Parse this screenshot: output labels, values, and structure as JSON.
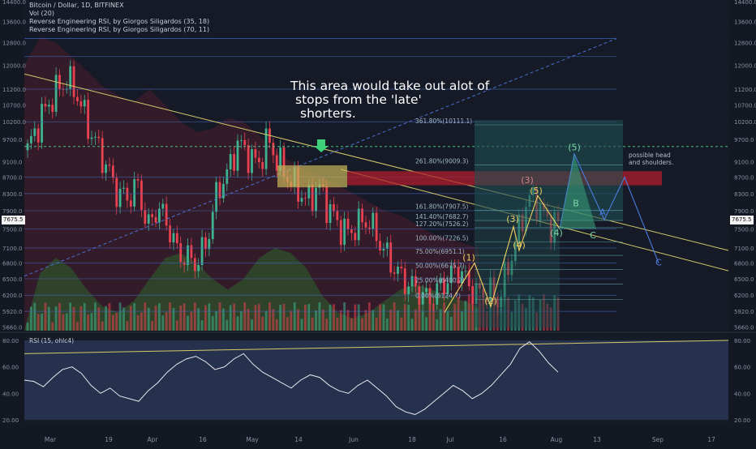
{
  "header": {
    "symbol_line": "Bitcoin / Dollar, 1D, BITFINEX",
    "indicator_1": "Vol (20)",
    "indicator_2": "Reverse Engineering RSI, by Giorgos Siligardos (35, 18)",
    "indicator_3": "Reverse Engineering RSI, by Giorgos Siligardos (70, 11)"
  },
  "annotations": {
    "main_note_1": "This area would take out alot of",
    "main_note_2": "stops from the 'late'",
    "main_note_3": "shorters.",
    "head_shoulders_1": "possible head",
    "head_shoulders_2": "and shoulders."
  },
  "price_tags": {
    "current_left": "7675.5",
    "current_right": "7675.5"
  },
  "colors": {
    "up": "#3fb28f",
    "down": "#e8414f",
    "wave": "#f0d060",
    "target": "#7bd9a8"
  },
  "chart_data": [
    {
      "type": "candlestick",
      "title": "Bitcoin / Dollar, 1D, BITFINEX",
      "y_scale": "log",
      "ylim": [
        5600,
        14400
      ],
      "y_ticks_left": [
        "14400.0",
        "13600.0",
        "12800.0",
        "12000.0",
        "11200.0",
        "10700.0",
        "10200.0",
        "9700.0",
        "9100.0",
        "8700.0",
        "8300.0",
        "7900.0",
        "7500.0",
        "7100.0",
        "6800.0",
        "6500.0",
        "6200.0",
        "5920.0",
        "5660.0"
      ],
      "y_ticks_right": [
        "14400.0",
        "13600.0",
        "12800.0",
        "12000.0",
        "11200.0",
        "10700.0",
        "10200.0",
        "9700.0",
        "9100.0",
        "8700.0",
        "8300.0",
        "7900.0",
        "7500.0",
        "7100.0",
        "6800.0",
        "6500.0",
        "6200.0",
        "5920.0",
        "5660.0"
      ],
      "x_ticks": [
        "Mar",
        "19",
        "Apr",
        "16",
        "May",
        "14",
        "Jun",
        "18",
        "Jul",
        "16",
        "Aug",
        "13",
        "Sep",
        "17"
      ],
      "close_path": [
        9400,
        10100,
        10700,
        11200,
        11500,
        11000,
        10100,
        9500,
        8900,
        8300,
        8200,
        8500,
        7500,
        8000,
        7600,
        7000,
        6900,
        6800,
        7300,
        8400,
        8800,
        9600,
        9300,
        9000,
        9700,
        9100,
        8700,
        8400,
        8100,
        8500,
        8000,
        7600,
        7400,
        7600,
        7700,
        7300,
        6900,
        6600,
        6400,
        6300,
        6100,
        6300,
        6500,
        6700,
        6400,
        6200,
        6300,
        6100,
        6700,
        7400,
        8200,
        8100,
        7600,
        7675.5
      ],
      "fib_levels": [
        {
          "label": "361.80%(10111.1)",
          "price": 10111.1
        },
        {
          "label": "261.80%(9009.3)",
          "price": 9009.3
        },
        {
          "label": "161.80%(7907.5)",
          "price": 7907.5
        },
        {
          "label": "141.40%(7682.7)",
          "price": 7682.7
        },
        {
          "label": "127.20%(7526.2)",
          "price": 7526.2
        },
        {
          "label": "100.00%(7226.5)",
          "price": 7226.5
        },
        {
          "label": "75.00%(6951.1)",
          "price": 6951.1
        },
        {
          "label": "50.00%(6675.7)",
          "price": 6675.7
        },
        {
          "label": "25.00%(6400.2)",
          "price": 6400.2
        },
        {
          "label": "0.00%(6124.7)",
          "price": 6124.7
        }
      ],
      "wave_labels": [
        "(1)",
        "(2)",
        "(3)",
        "(4)",
        "(5)",
        "(3)",
        "(4)",
        "(5)",
        "B",
        "C",
        "A",
        "C"
      ]
    },
    {
      "type": "line",
      "title": "RSI (15, ohlc4)",
      "ylim": [
        20,
        80
      ],
      "y_ticks": [
        "80.00",
        "60.00",
        "40.00",
        "20.00"
      ],
      "values": [
        50,
        49,
        45,
        52,
        58,
        60,
        55,
        46,
        40,
        44,
        38,
        36,
        34,
        42,
        48,
        56,
        62,
        66,
        68,
        64,
        58,
        60,
        66,
        70,
        62,
        56,
        52,
        48,
        44,
        50,
        54,
        52,
        46,
        42,
        40,
        46,
        50,
        44,
        38,
        30,
        26,
        24,
        28,
        34,
        40,
        46,
        42,
        36,
        40,
        46,
        54,
        62,
        74,
        79,
        72,
        63,
        56
      ]
    }
  ]
}
